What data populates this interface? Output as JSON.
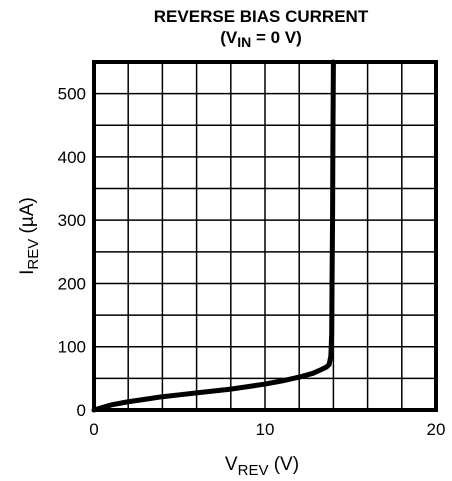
{
  "chart_data": {
    "type": "line",
    "title": {
      "line1": "REVERSE BIAS CURRENT",
      "line2_prefix": "(V",
      "line2_sub": "IN",
      "line2_suffix": " = 0 V)"
    },
    "xlabel": {
      "main": "V",
      "sub": "REV",
      "unit": " (V)"
    },
    "ylabel": {
      "main": "I",
      "sub": "REV",
      "unit": " (µA)"
    },
    "xlim": [
      0,
      20
    ],
    "ylim": [
      0,
      550
    ],
    "x_ticks": [
      0,
      10,
      20
    ],
    "y_ticks": [
      0,
      100,
      200,
      300,
      400,
      500
    ],
    "grid": true,
    "grid_x_step": 2,
    "grid_y_step": 50,
    "series": [
      {
        "x": [
          0,
          0.5,
          1,
          2,
          3,
          4,
          5,
          6,
          7,
          8,
          9,
          10,
          11,
          12,
          12.8,
          13.3,
          13.6,
          13.75,
          13.85,
          13.9,
          13.92,
          13.95,
          13.97,
          14.0
        ],
        "y": [
          0,
          4,
          8,
          13,
          17,
          21,
          24,
          27,
          30,
          33,
          37,
          41,
          46,
          52,
          58,
          64,
          68,
          72,
          85,
          120,
          200,
          300,
          420,
          550
        ],
        "color": "#000000"
      }
    ]
  }
}
